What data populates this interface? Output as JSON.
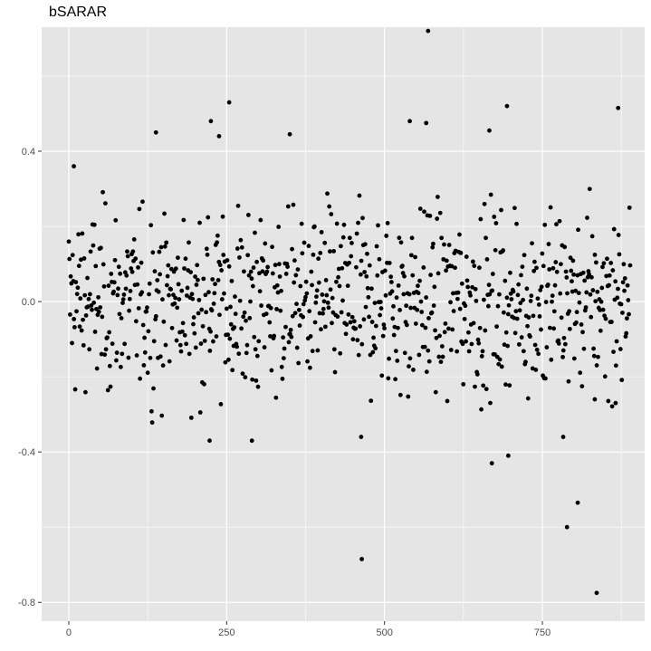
{
  "chart_data": {
    "type": "scatter",
    "title": "bSARAR",
    "xlabel": "",
    "ylabel": "",
    "xlim": [
      -43,
      912
    ],
    "ylim": [
      -0.85,
      0.73
    ],
    "x_ticks": [
      0,
      250,
      500,
      750
    ],
    "y_ticks": [
      -0.8,
      -0.4,
      0.0,
      0.4
    ],
    "x_tick_labels": [
      "0",
      "250",
      "500",
      "750"
    ],
    "y_tick_labels": [
      "-0.8",
      "-0.4",
      "0.0",
      "0.4"
    ],
    "grid": true,
    "legend": "none",
    "colors": {
      "panel": "#e5e5e5",
      "grid": "#ffffff",
      "point": "#000000",
      "tick_text": "#4d4d4d",
      "tick_mark": "#333333"
    },
    "n_points": 900,
    "bulk_y_range": [
      -0.33,
      0.3
    ],
    "notable_points": [
      {
        "x": 8,
        "y": 0.36
      },
      {
        "x": 138,
        "y": 0.45
      },
      {
        "x": 225,
        "y": 0.48
      },
      {
        "x": 238,
        "y": 0.44
      },
      {
        "x": 254,
        "y": 0.53
      },
      {
        "x": 350,
        "y": 0.445
      },
      {
        "x": 540,
        "y": 0.48
      },
      {
        "x": 566,
        "y": 0.475
      },
      {
        "x": 569,
        "y": 0.72
      },
      {
        "x": 666,
        "y": 0.455
      },
      {
        "x": 694,
        "y": 0.52
      },
      {
        "x": 870,
        "y": 0.515
      },
      {
        "x": 223,
        "y": -0.37
      },
      {
        "x": 290,
        "y": -0.37
      },
      {
        "x": 463,
        "y": -0.36
      },
      {
        "x": 464,
        "y": -0.685
      },
      {
        "x": 670,
        "y": -0.43
      },
      {
        "x": 696,
        "y": -0.41
      },
      {
        "x": 783,
        "y": -0.36
      },
      {
        "x": 789,
        "y": -0.6
      },
      {
        "x": 806,
        "y": -0.535
      },
      {
        "x": 836,
        "y": -0.775
      },
      {
        "x": 866,
        "y": -0.27
      },
      {
        "x": 833,
        "y": -0.26
      }
    ]
  }
}
